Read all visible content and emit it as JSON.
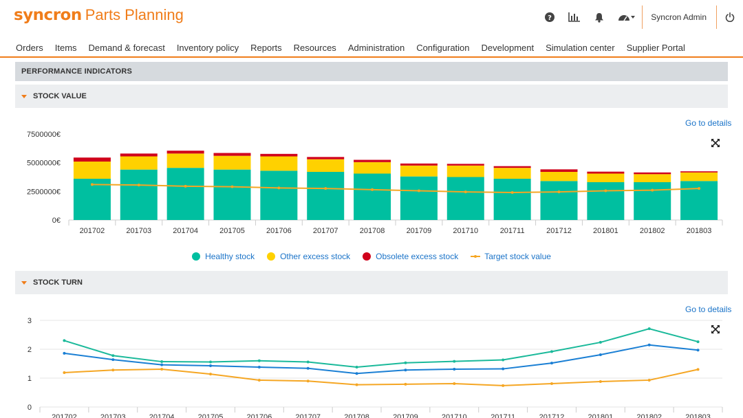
{
  "app": {
    "brand": "syncron",
    "product": "Parts Planning"
  },
  "header": {
    "user": "Syncron Admin",
    "icons": [
      "help-icon",
      "bar-chart-icon",
      "bell-icon",
      "dashboard-icon",
      "power-icon"
    ]
  },
  "menu": [
    "Orders",
    "Items",
    "Demand & forecast",
    "Inventory policy",
    "Reports",
    "Resources",
    "Administration",
    "Configuration",
    "Development",
    "Simulation center",
    "Supplier Portal"
  ],
  "section": {
    "title": "PERFORMANCE INDICATORS"
  },
  "stock_value": {
    "title": "STOCK VALUE",
    "details_link": "Go to details",
    "legend": [
      "Healthy stock",
      "Other excess stock",
      "Obsolete excess stock",
      "Target stock value"
    ]
  },
  "stock_turn": {
    "title": "STOCK TURN",
    "details_link": "Go to details"
  },
  "colors": {
    "accent": "#f07d1a",
    "healthy": "#00bfa0",
    "other_excess": "#ffd100",
    "obsolete": "#d0021b",
    "target": "#f5a623",
    "link": "#1a73c8",
    "turn_green": "#1ab99a",
    "turn_blue": "#1a7fd4",
    "turn_orange": "#f5a623"
  },
  "chart_data": [
    {
      "type": "bar",
      "stacked": true,
      "categories": [
        "201702",
        "201703",
        "201704",
        "201705",
        "201706",
        "201707",
        "201708",
        "201709",
        "201710",
        "201711",
        "201712",
        "201801",
        "201802",
        "201803"
      ],
      "y_ticks": [
        "0€",
        "2500000€",
        "5000000€",
        "7500000€"
      ],
      "ylim": [
        0,
        7500000
      ],
      "series": [
        {
          "name": "Healthy stock",
          "values": [
            3600000,
            4400000,
            4550000,
            4400000,
            4300000,
            4200000,
            4050000,
            3800000,
            3750000,
            3600000,
            3400000,
            3300000,
            3300000,
            3400000
          ]
        },
        {
          "name": "Other excess stock",
          "values": [
            1500000,
            1150000,
            1250000,
            1200000,
            1250000,
            1100000,
            1000000,
            950000,
            1000000,
            950000,
            800000,
            750000,
            700000,
            750000
          ]
        },
        {
          "name": "Obsolete excess stock",
          "values": [
            350000,
            250000,
            250000,
            250000,
            220000,
            200000,
            200000,
            180000,
            150000,
            150000,
            220000,
            170000,
            150000,
            100000
          ]
        },
        {
          "name": "Target stock value",
          "type": "line",
          "values": [
            3100000,
            3050000,
            2950000,
            2900000,
            2800000,
            2750000,
            2650000,
            2550000,
            2450000,
            2400000,
            2450000,
            2550000,
            2600000,
            2750000
          ]
        }
      ]
    },
    {
      "type": "line",
      "categories": [
        "201702",
        "201703",
        "201704",
        "201705",
        "201706",
        "201707",
        "201708",
        "201709",
        "201710",
        "201711",
        "201712",
        "201801",
        "201802",
        "201803"
      ],
      "y_ticks": [
        "0",
        "1",
        "2",
        "3"
      ],
      "ylim": [
        0,
        3
      ],
      "series": [
        {
          "values": [
            2.3,
            1.78,
            1.57,
            1.56,
            1.6,
            1.56,
            1.38,
            1.53,
            1.58,
            1.63,
            1.92,
            2.24,
            2.71,
            2.26
          ]
        },
        {
          "values": [
            1.86,
            1.64,
            1.46,
            1.43,
            1.38,
            1.34,
            1.16,
            1.28,
            1.31,
            1.32,
            1.52,
            1.81,
            2.15,
            1.97
          ]
        },
        {
          "values": [
            1.19,
            1.28,
            1.31,
            1.14,
            0.93,
            0.9,
            0.77,
            0.79,
            0.81,
            0.74,
            0.81,
            0.88,
            0.93,
            1.3
          ]
        }
      ]
    }
  ]
}
